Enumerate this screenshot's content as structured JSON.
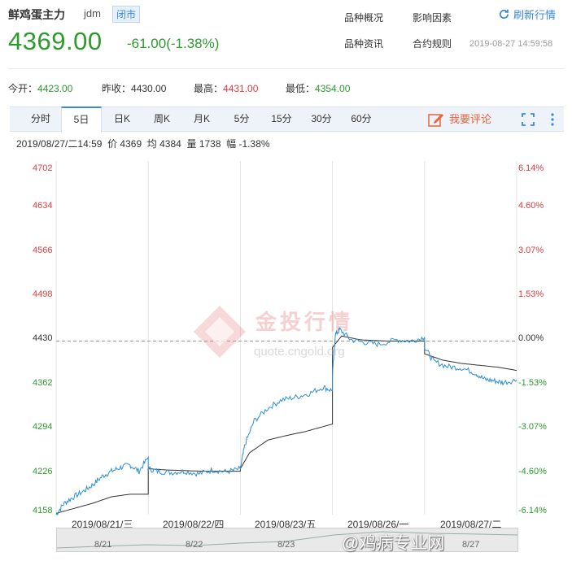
{
  "header": {
    "title": "鲜鸡蛋主力",
    "code": "jdm",
    "status": "闭市",
    "price": "4369.00",
    "change": "-61.00(-1.38%)",
    "links": [
      "品种概况",
      "影响因素",
      "品种资讯",
      "合约规则"
    ],
    "refresh_label": "刷新行情",
    "timestamp": "2019-08-27 14:59:58"
  },
  "stats": [
    {
      "label": "今开：",
      "value": "4423.00",
      "color": "green"
    },
    {
      "label": "昨收：",
      "value": "4430.00",
      "color": "gray"
    },
    {
      "label": "最高：",
      "value": "4431.00",
      "color": "red"
    },
    {
      "label": "最低：",
      "value": "4354.00",
      "color": "green"
    }
  ],
  "tabs": [
    "分时",
    "5日",
    "日K",
    "周K",
    "月K",
    "5分",
    "15分",
    "30分",
    "60分"
  ],
  "active_tab": "5日",
  "comment_label": "我要评论",
  "info_line": "2019/08/27/二14:59  价 4369  均 4384  量 1738  幅 -1.38%",
  "watermark": {
    "cn": "金投行情",
    "url": "quote.cngold.org"
  },
  "signature": "@鸡病专业网",
  "chart_data": {
    "type": "line",
    "y_ticks_price": [
      "4702",
      "4634",
      "4566",
      "4498",
      "4430",
      "4362",
      "4294",
      "4226",
      "4158"
    ],
    "y_ticks_pct": [
      "6.14%",
      "4.60%",
      "3.07%",
      "1.53%",
      "0.00%",
      "-1.53%",
      "-3.07%",
      "-4.60%",
      "-6.14%"
    ],
    "ylim": [
      4158,
      4702
    ],
    "prev_close": 4430,
    "x_labels": [
      "2019/08/21/三",
      "2019/08/22/四",
      "2019/08/23/五",
      "2019/08/26/一",
      "2019/08/27/二"
    ],
    "navigator_labels": [
      "8/21",
      "8/22",
      "8/23",
      "8/26",
      "8/27"
    ],
    "series": [
      {
        "name": "价",
        "color": "#2b8fd6",
        "days": [
          [
            [
              0,
              4158
            ],
            [
              0.08,
              4175
            ],
            [
              0.18,
              4185
            ],
            [
              0.3,
              4195
            ],
            [
              0.4,
              4205
            ],
            [
              0.5,
              4218
            ],
            [
              0.6,
              4226
            ],
            [
              0.7,
              4232
            ],
            [
              0.8,
              4236
            ],
            [
              0.9,
              4226
            ],
            [
              1,
              4248
            ]
          ],
          [
            [
              0,
              4230
            ],
            [
              0.1,
              4226
            ],
            [
              0.25,
              4224
            ],
            [
              0.4,
              4226
            ],
            [
              0.55,
              4222
            ],
            [
              0.7,
              4228
            ],
            [
              0.85,
              4225
            ],
            [
              1,
              4230
            ]
          ],
          [
            [
              0,
              4230
            ],
            [
              0.05,
              4268
            ],
            [
              0.15,
              4305
            ],
            [
              0.3,
              4325
            ],
            [
              0.45,
              4338
            ],
            [
              0.6,
              4342
            ],
            [
              0.75,
              4348
            ],
            [
              0.9,
              4358
            ],
            [
              1,
              4352
            ]
          ],
          [
            [
              0,
              4376
            ],
            [
              0.03,
              4440
            ],
            [
              0.08,
              4448
            ],
            [
              0.2,
              4432
            ],
            [
              0.35,
              4428
            ],
            [
              0.5,
              4425
            ],
            [
              0.7,
              4432
            ],
            [
              0.85,
              4430
            ],
            [
              1,
              4436
            ]
          ],
          [
            [
              0,
              4420
            ],
            [
              0.1,
              4398
            ],
            [
              0.25,
              4390
            ],
            [
              0.4,
              4388
            ],
            [
              0.55,
              4380
            ],
            [
              0.65,
              4370
            ],
            [
              0.75,
              4368
            ],
            [
              0.85,
              4365
            ],
            [
              1,
              4369
            ]
          ]
        ]
      },
      {
        "name": "均",
        "color": "#333333",
        "days": [
          [
            [
              0,
              4160
            ],
            [
              0.2,
              4168
            ],
            [
              0.4,
              4176
            ],
            [
              0.6,
              4186
            ],
            [
              0.8,
              4190
            ],
            [
              1,
              4190
            ]
          ],
          [
            [
              0,
              4230
            ],
            [
              0.2,
              4228
            ],
            [
              0.4,
              4227
            ],
            [
              0.6,
              4226
            ],
            [
              0.8,
              4226
            ],
            [
              1,
              4226
            ]
          ],
          [
            [
              0,
              4230
            ],
            [
              0.1,
              4255
            ],
            [
              0.3,
              4275
            ],
            [
              0.5,
              4282
            ],
            [
              0.7,
              4288
            ],
            [
              0.9,
              4296
            ],
            [
              1,
              4300
            ]
          ],
          [
            [
              0,
              4420
            ],
            [
              0.1,
              4438
            ],
            [
              0.3,
              4432
            ],
            [
              0.6,
              4430
            ],
            [
              0.8,
              4430
            ],
            [
              1,
              4430
            ]
          ],
          [
            [
              0,
              4410
            ],
            [
              0.2,
              4400
            ],
            [
              0.4,
              4395
            ],
            [
              0.6,
              4392
            ],
            [
              0.8,
              4389
            ],
            [
              1,
              4384
            ]
          ]
        ]
      }
    ]
  }
}
